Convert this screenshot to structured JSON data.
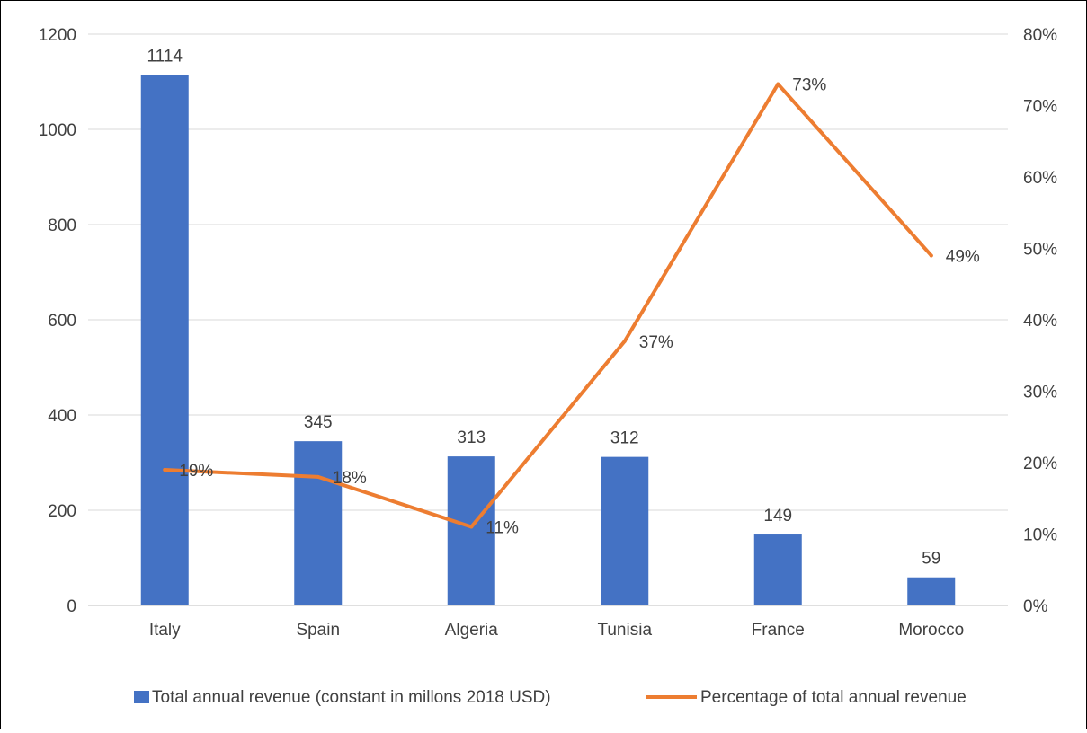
{
  "chart_data": {
    "type": "bar",
    "categories": [
      "Italy",
      "Spain",
      "Algeria",
      "Tunisia",
      "France",
      "Morocco"
    ],
    "series": [
      {
        "name": "Total annual revenue (constant in millons 2018 USD)",
        "type": "bar",
        "axis": "left",
        "values": [
          1114,
          345,
          313,
          312,
          149,
          59
        ],
        "labels": [
          "1114",
          "345",
          "313",
          "312",
          "149",
          "59"
        ],
        "color": "#4472C4"
      },
      {
        "name": "Percentage of total annual revenue",
        "type": "line",
        "axis": "right",
        "values": [
          19,
          18,
          11,
          37,
          73,
          49
        ],
        "labels": [
          "19%",
          "18%",
          "11%",
          "37%",
          "73%",
          "49%"
        ],
        "color": "#ED7D31"
      }
    ],
    "y_left": {
      "range": [
        0,
        1200
      ],
      "ticks": [
        0,
        200,
        400,
        600,
        800,
        1000,
        1200
      ],
      "tick_labels": [
        "0",
        "200",
        "400",
        "600",
        "800",
        "1000",
        "1200"
      ]
    },
    "y_right": {
      "range": [
        0,
        80
      ],
      "ticks": [
        0,
        10,
        20,
        30,
        40,
        50,
        60,
        70,
        80
      ],
      "tick_labels": [
        "0%",
        "10%",
        "20%",
        "30%",
        "40%",
        "50%",
        "60%",
        "70%",
        "80%"
      ]
    },
    "grid": true,
    "legend_position": "bottom",
    "title": "",
    "xlabel": "",
    "ylabel": ""
  }
}
